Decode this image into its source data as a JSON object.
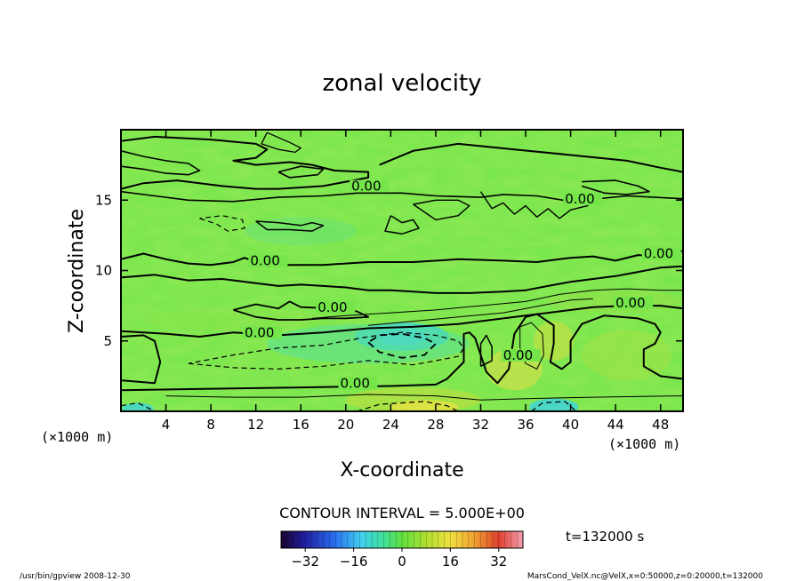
{
  "chart_data": {
    "type": "heatmap",
    "title": "zonal velocity",
    "xlabel": "X-coordinate",
    "ylabel": "Z-coordinate",
    "x_unit": "(×1000 m)",
    "y_unit": "(×1000 m)",
    "xlim": [
      0,
      50
    ],
    "ylim": [
      0,
      20
    ],
    "x_ticks": [
      4,
      8,
      12,
      16,
      20,
      24,
      28,
      32,
      36,
      40,
      44,
      48
    ],
    "y_ticks": [
      5,
      10,
      15
    ],
    "contour_interval_text": "CONTOUR INTERVAL = 5.000E+00",
    "contour_interval": 5,
    "zero_contour_labels": [
      "0.00",
      "0.00",
      "0.00",
      "0.00",
      "0.00",
      "0.00",
      "0.00",
      "0.00",
      "0.00"
    ],
    "colorbar": {
      "range": [
        -40,
        40
      ],
      "ticks": [
        -32,
        -16,
        0,
        16,
        32
      ],
      "colormap": "rainbow"
    },
    "time_label": "t=132000 s",
    "footer_left": "/usr/bin/gpview   2008-12-30",
    "footer_right": "MarsCond_VelX.nc@VelX,x=0:50000,z=0:20000,t=132000",
    "grid": false,
    "legend": "colorbar-bottom"
  }
}
